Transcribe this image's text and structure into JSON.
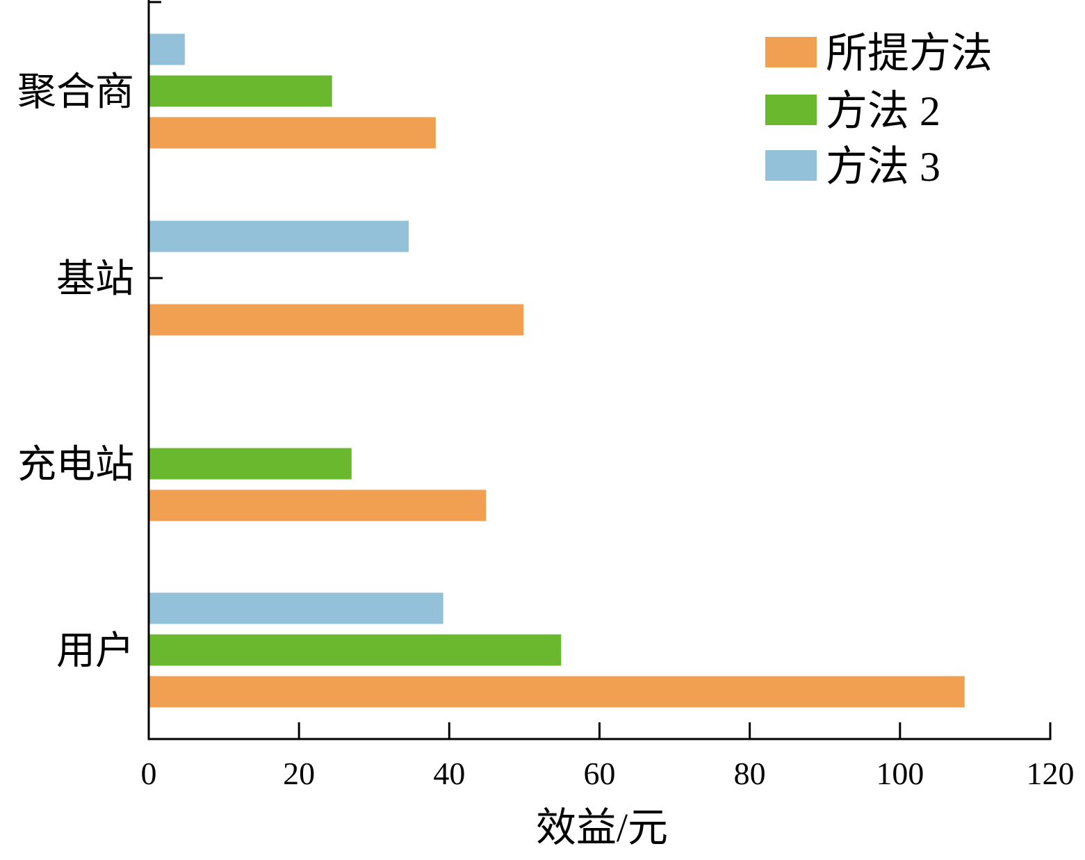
{
  "chart_data": {
    "type": "bar",
    "orientation": "horizontal",
    "title": "",
    "xlabel": "效益/元",
    "ylabel": "",
    "xlim": [
      0,
      120
    ],
    "x_ticks": [
      "0",
      "20",
      "40",
      "60",
      "80",
      "100",
      "120"
    ],
    "categories": [
      "聚合商",
      "基站",
      "充电站",
      "用户"
    ],
    "series": [
      {
        "name": "所提方法",
        "color": "#f0a050",
        "values": [
          38.2,
          49.9,
          44.9,
          108.6
        ]
      },
      {
        "name": "方法 2",
        "color": "#6ab82e",
        "values": [
          24.4,
          0,
          27.0,
          54.9
        ]
      },
      {
        "name": "方法 3",
        "color": "#92c1d9",
        "values": [
          4.8,
          34.6,
          0,
          39.2
        ]
      }
    ],
    "grid": false,
    "legend_position": "top-right"
  }
}
